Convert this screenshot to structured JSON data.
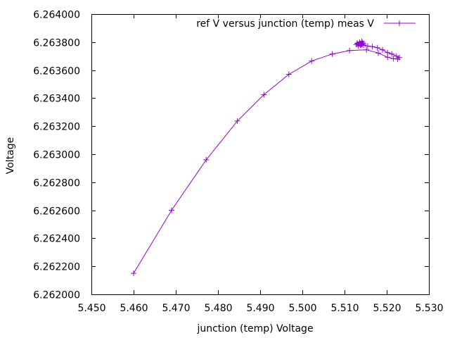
{
  "chart_data": {
    "type": "line",
    "title": "",
    "xlabel": "junction (temp) Voltage",
    "ylabel": "Voltage",
    "xlim": [
      5.45,
      5.53
    ],
    "ylim": [
      6.262,
      6.264
    ],
    "x_ticks": [
      "5.450",
      "5.460",
      "5.470",
      "5.480",
      "5.490",
      "5.500",
      "5.510",
      "5.520",
      "5.530"
    ],
    "y_ticks": [
      "6.262000",
      "6.262200",
      "6.262400",
      "6.262600",
      "6.262800",
      "6.263000",
      "6.263200",
      "6.263400",
      "6.263600",
      "6.263800",
      "6.264000"
    ],
    "grid": false,
    "legend_position": "top-right",
    "series": [
      {
        "name": "ref V versus junction (temp) meas V",
        "color": "#9400d3",
        "marker": "plus",
        "points": [
          [
            5.46,
            6.26215
          ],
          [
            5.469,
            6.2626
          ],
          [
            5.4772,
            6.26296
          ],
          [
            5.4846,
            6.263237
          ],
          [
            5.4909,
            6.263425
          ],
          [
            5.4968,
            6.26357
          ],
          [
            5.5022,
            6.263665
          ],
          [
            5.5071,
            6.263715
          ],
          [
            5.5112,
            6.26374
          ],
          [
            5.5152,
            6.263745
          ],
          [
            5.518,
            6.263722
          ],
          [
            5.5202,
            6.263692
          ],
          [
            5.5216,
            6.263682
          ],
          [
            5.5226,
            6.263678
          ],
          [
            5.523,
            6.26369
          ],
          [
            5.5223,
            6.2637
          ],
          [
            5.5212,
            6.263715
          ],
          [
            5.5202,
            6.263725
          ],
          [
            5.519,
            6.263745
          ],
          [
            5.5178,
            6.26376
          ],
          [
            5.5166,
            6.263768
          ],
          [
            5.5155,
            6.263772
          ],
          [
            5.5145,
            6.263778
          ],
          [
            5.5138,
            6.263782
          ],
          [
            5.5132,
            6.263786
          ],
          [
            5.5128,
            6.263782
          ],
          [
            5.513,
            6.263792
          ],
          [
            5.5136,
            6.2638
          ],
          [
            5.5141,
            6.263806
          ],
          [
            5.5143,
            6.263795
          ],
          [
            5.5138,
            6.263778
          ],
          [
            5.5133,
            6.263772
          ],
          [
            5.514,
            6.26378
          ],
          [
            5.5145,
            6.263788
          ],
          [
            5.5136,
            6.263795
          ],
          [
            5.5142,
            6.263785
          ]
        ]
      }
    ]
  }
}
